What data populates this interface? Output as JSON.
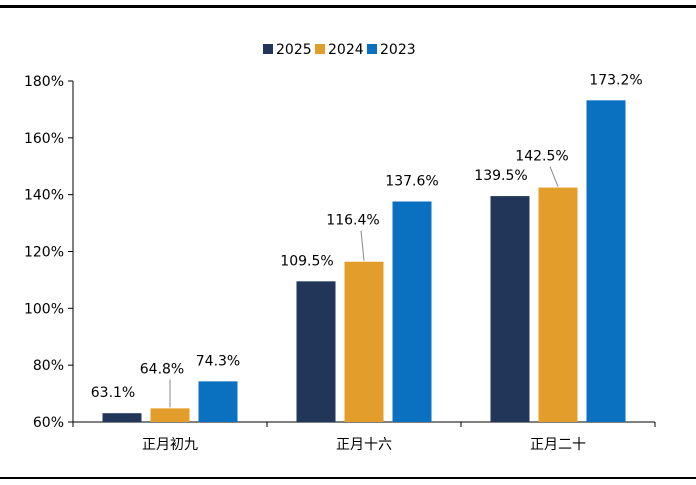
{
  "chart_data": {
    "type": "bar",
    "title": "",
    "xlabel": "",
    "ylabel": "",
    "categories": [
      "正月初九",
      "正月十六",
      "正月二十"
    ],
    "series": [
      {
        "name": "2025",
        "color": "#22365A",
        "values": [
          63.1,
          109.5,
          139.5
        ],
        "labels": [
          "63.1%",
          "109.5%",
          "139.5%"
        ]
      },
      {
        "name": "2024",
        "color": "#E39D2A",
        "values": [
          64.8,
          116.4,
          142.5
        ],
        "labels": [
          "64.8%",
          "116.4%",
          "142.5%"
        ]
      },
      {
        "name": "2023",
        "color": "#0A70C0",
        "values": [
          74.3,
          137.6,
          173.2
        ],
        "labels": [
          "74.3%",
          "137.6%",
          "173.2%"
        ]
      }
    ],
    "ylim": [
      60,
      180
    ],
    "yticks": [
      60,
      80,
      100,
      120,
      140,
      160,
      180
    ],
    "ytick_labels": [
      "60%",
      "80%",
      "100%",
      "120%",
      "140%",
      "160%",
      "180%"
    ],
    "grid": false,
    "legend": "top-center"
  }
}
